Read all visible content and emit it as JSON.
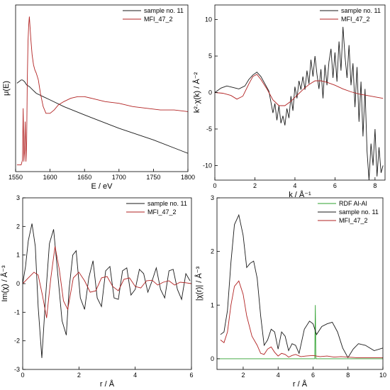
{
  "chart_data": [
    {
      "id": "p1",
      "type": "line",
      "xlabel": "E / eV",
      "ylabel": "μ(E)",
      "xlim": [
        1550,
        1800
      ],
      "ylim": [
        0,
        1
      ],
      "xticks": [
        1550,
        1600,
        1650,
        1700,
        1750,
        1800
      ],
      "yticks": [],
      "legend_position": "top-right",
      "series": [
        {
          "name": "sample no. 11",
          "color": "#1a1a1a",
          "x": [
            1552,
            1555,
            1558,
            1560,
            1563,
            1566,
            1570,
            1575,
            1580,
            1590,
            1600,
            1620,
            1650,
            1700,
            1750,
            1800
          ],
          "y": [
            0.53,
            0.54,
            0.55,
            0.55,
            0.54,
            0.52,
            0.51,
            0.49,
            0.47,
            0.45,
            0.43,
            0.39,
            0.34,
            0.26,
            0.19,
            0.11
          ]
        },
        {
          "name": "MFI_47_2",
          "color": "#b22222",
          "x": [
            1552,
            1558,
            1560,
            1561,
            1562,
            1563,
            1564,
            1565,
            1566,
            1567,
            1568,
            1569,
            1570,
            1572,
            1574,
            1576,
            1578,
            1580,
            1583,
            1586,
            1590,
            1594,
            1600,
            1606,
            1612,
            1620,
            1630,
            1640,
            1650,
            1660,
            1670,
            1680,
            1700,
            1720,
            1740,
            1760,
            1780,
            1800
          ],
          "y": [
            0.04,
            0.04,
            0.07,
            0.38,
            0.06,
            0.12,
            0.3,
            0.06,
            0.18,
            0.55,
            0.78,
            0.88,
            0.93,
            0.8,
            0.7,
            0.64,
            0.61,
            0.59,
            0.55,
            0.47,
            0.39,
            0.35,
            0.35,
            0.37,
            0.4,
            0.42,
            0.44,
            0.45,
            0.45,
            0.44,
            0.43,
            0.42,
            0.41,
            0.39,
            0.38,
            0.37,
            0.37,
            0.36
          ]
        }
      ]
    },
    {
      "id": "p2",
      "type": "line",
      "xlabel": "k / Å⁻¹",
      "ylabel": "k²·χ(k) / Å⁻²",
      "xlim": [
        0,
        8.5
      ],
      "ylim": [
        -12,
        12
      ],
      "xticks": [
        0,
        2,
        4,
        6,
        8
      ],
      "yticks": [
        -10,
        -5,
        0,
        5,
        10
      ],
      "legend_position": "top-right",
      "series": [
        {
          "name": "sample no. 11",
          "color": "#1a1a1a",
          "x": [
            0,
            0.3,
            0.6,
            0.9,
            1.2,
            1.5,
            1.7,
            1.9,
            2.1,
            2.3,
            2.5,
            2.7,
            2.9,
            3.0,
            3.1,
            3.2,
            3.3,
            3.4,
            3.5,
            3.6,
            3.7,
            3.8,
            3.9,
            4.0,
            4.1,
            4.2,
            4.3,
            4.4,
            4.5,
            4.6,
            4.7,
            4.8,
            4.9,
            5.0,
            5.1,
            5.2,
            5.3,
            5.4,
            5.5,
            5.6,
            5.7,
            5.8,
            5.9,
            6.0,
            6.1,
            6.2,
            6.3,
            6.4,
            6.5,
            6.6,
            6.7,
            6.8,
            6.9,
            7.0,
            7.1,
            7.2,
            7.3,
            7.4,
            7.5,
            7.6,
            7.7,
            7.8,
            7.9,
            8.0,
            8.1,
            8.2,
            8.3,
            8.4
          ],
          "y": [
            0,
            0.6,
            0.9,
            0.7,
            0.5,
            0.9,
            1.8,
            2.4,
            2.8,
            2.2,
            1.2,
            0.2,
            -2.8,
            -1.5,
            -3.8,
            -1.8,
            -4.2,
            -3.2,
            -4.5,
            -2.2,
            -3.5,
            -0.5,
            -2.5,
            0.8,
            -0.8,
            1.6,
            0.4,
            2.2,
            0.4,
            3.0,
            1.2,
            4.5,
            2.2,
            5.0,
            2.5,
            0.5,
            3.2,
            -0.8,
            3.8,
            1.0,
            4.2,
            6.0,
            2.0,
            5.5,
            1.5,
            7.0,
            3.0,
            9.0,
            5.0,
            2.0,
            6.5,
            1.0,
            4.0,
            -2.0,
            3.5,
            -4.0,
            1.5,
            -6.0,
            0.5,
            -8.0,
            -12.0,
            -7.0,
            -10.0,
            -5.0,
            -11.5,
            -7.5,
            -11.0,
            -10.0
          ]
        },
        {
          "name": "MFI_47_2",
          "color": "#b22222",
          "x": [
            0,
            0.4,
            0.8,
            1.1,
            1.4,
            1.7,
            1.9,
            2.1,
            2.3,
            2.6,
            2.9,
            3.2,
            3.5,
            3.8,
            4.1,
            4.4,
            4.7,
            5.0,
            5.3,
            5.6,
            6.0,
            6.4,
            6.8,
            7.2,
            7.6,
            8.0,
            8.4
          ],
          "y": [
            0,
            -0.1,
            -0.4,
            -0.9,
            -0.5,
            1.2,
            2.2,
            2.5,
            1.8,
            0.5,
            -1.0,
            -1.8,
            -1.8,
            -1.2,
            -0.4,
            0.4,
            1.1,
            1.6,
            1.6,
            1.4,
            1.0,
            0.5,
            0.1,
            -0.2,
            -0.4,
            -0.6,
            -0.8
          ]
        }
      ]
    },
    {
      "id": "p3",
      "type": "line",
      "xlabel": "r / Å",
      "ylabel": "Im(χ) / Å⁻³",
      "xlim": [
        0,
        6
      ],
      "ylim": [
        -3,
        3
      ],
      "xticks": [
        0,
        2,
        4,
        6
      ],
      "yticks": [
        -3,
        -2,
        -1,
        0,
        1,
        2,
        3
      ],
      "legend_position": "top-right",
      "series": [
        {
          "name": "sample no. 11",
          "color": "#1a1a1a",
          "x": [
            0,
            0.1,
            0.2,
            0.33,
            0.45,
            0.55,
            0.68,
            0.82,
            0.95,
            1.1,
            1.25,
            1.4,
            1.55,
            1.65,
            1.78,
            1.9,
            2.05,
            2.2,
            2.35,
            2.5,
            2.65,
            2.8,
            2.95,
            3.1,
            3.25,
            3.4,
            3.55,
            3.7,
            3.85,
            4.0,
            4.15,
            4.3,
            4.45,
            4.6,
            4.75,
            4.9,
            5.05,
            5.2,
            5.35,
            5.5,
            5.65,
            5.8,
            5.95
          ],
          "y": [
            0,
            0.6,
            1.5,
            2.1,
            1.3,
            -0.8,
            -2.6,
            -0.4,
            1.4,
            1.9,
            0.3,
            -1.3,
            -1.8,
            -0.2,
            1.0,
            1.15,
            -0.5,
            -0.9,
            0.2,
            0.8,
            -0.5,
            -0.8,
            0.45,
            0.6,
            -0.5,
            -0.55,
            0.45,
            0.55,
            -0.4,
            -0.2,
            0.5,
            0.35,
            -0.3,
            0.1,
            0.55,
            -0.2,
            -0.5,
            0.45,
            0.5,
            -0.2,
            -0.55,
            0.35,
            0.1
          ]
        },
        {
          "name": "MFI_47_2",
          "color": "#b22222",
          "x": [
            0,
            0.2,
            0.4,
            0.55,
            0.7,
            0.85,
            1.0,
            1.15,
            1.3,
            1.45,
            1.6,
            1.8,
            2.0,
            2.2,
            2.4,
            2.6,
            2.8,
            3.0,
            3.2,
            3.4,
            3.6,
            3.8,
            4.0,
            4.2,
            4.4,
            4.6,
            4.8,
            5.0,
            5.2,
            5.4,
            5.6,
            5.8,
            6.0
          ],
          "y": [
            0,
            0.2,
            0.4,
            0.3,
            -0.4,
            -1.2,
            0.2,
            1.3,
            0.5,
            -0.6,
            -0.9,
            0.2,
            0.4,
            0.1,
            -0.3,
            -0.25,
            0.2,
            0.25,
            -0.1,
            -0.25,
            0.15,
            0.2,
            -0.1,
            -0.15,
            0.1,
            0.12,
            -0.05,
            0.05,
            0.1,
            -0.05,
            0.05,
            0.03,
            0.0
          ]
        }
      ]
    },
    {
      "id": "p4",
      "type": "line",
      "xlabel": "r / Å",
      "ylabel": "|χ(r)| / Å⁻³",
      "xlim": [
        0.5,
        10
      ],
      "ylim": [
        -0.2,
        3
      ],
      "xticks": [
        2,
        4,
        6,
        8,
        10
      ],
      "yticks": [
        0,
        1,
        2,
        3
      ],
      "legend_position": "top-right",
      "series": [
        {
          "name": "RDF Al-Al",
          "color": "#2ca02c",
          "x": [
            0.5,
            6.1,
            6.13,
            6.16,
            6.2,
            10
          ],
          "y": [
            0,
            0,
            1.0,
            0,
            0,
            0
          ]
        },
        {
          "name": "sample no. 11",
          "color": "#1a1a1a",
          "x": [
            0.7,
            0.9,
            1.1,
            1.3,
            1.5,
            1.75,
            2.0,
            2.2,
            2.4,
            2.6,
            2.8,
            3.0,
            3.2,
            3.4,
            3.6,
            3.8,
            4.0,
            4.2,
            4.4,
            4.6,
            4.8,
            5.0,
            5.2,
            5.5,
            5.8,
            6.0,
            6.2,
            6.5,
            6.8,
            7.1,
            7.4,
            7.7,
            8.0,
            8.3,
            8.6,
            9.0,
            9.5,
            10.0
          ],
          "y": [
            0.45,
            0.5,
            0.9,
            1.8,
            2.5,
            2.68,
            2.3,
            1.7,
            1.78,
            1.82,
            1.5,
            0.8,
            0.25,
            0.35,
            0.55,
            0.5,
            0.18,
            0.5,
            0.42,
            0.15,
            0.28,
            0.25,
            0.1,
            0.55,
            0.7,
            0.65,
            0.45,
            0.6,
            0.65,
            0.68,
            0.5,
            0.2,
            0.02,
            0.18,
            0.28,
            0.25,
            0.15,
            0.2
          ]
        },
        {
          "name": "MFI_47_2",
          "color": "#b22222",
          "x": [
            0.7,
            0.9,
            1.1,
            1.3,
            1.5,
            1.75,
            2.0,
            2.2,
            2.5,
            2.8,
            3.0,
            3.2,
            3.4,
            3.6,
            3.8,
            4.0,
            4.2,
            4.4,
            4.6,
            4.8,
            5.0,
            5.3,
            5.6,
            6.0,
            6.4,
            6.8,
            7.2,
            7.6,
            8.0,
            8.5,
            9.0,
            10.0
          ],
          "y": [
            0.35,
            0.3,
            0.5,
            1.0,
            1.35,
            1.45,
            1.2,
            0.8,
            0.42,
            0.25,
            0.1,
            0.08,
            0.18,
            0.22,
            0.12,
            0.05,
            0.1,
            0.08,
            0.03,
            0.06,
            0.08,
            0.04,
            0.05,
            0.06,
            0.04,
            0.05,
            0.03,
            0.04,
            0.03,
            0.02,
            0.02,
            0.02
          ]
        }
      ]
    }
  ]
}
